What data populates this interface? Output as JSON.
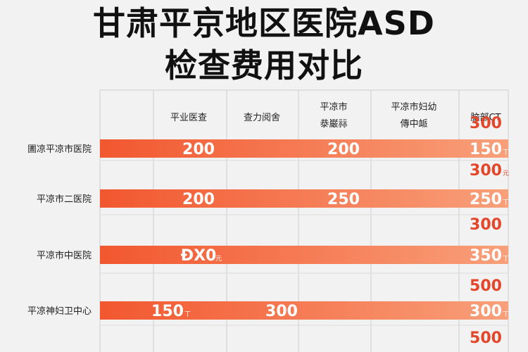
{
  "title_line1": "甘肃平京地区医院ASD",
  "title_line2": "检查费用对比",
  "chart_data": {
    "type": "bar",
    "title": "甘肃平京地区医院ASD 检查费用对比",
    "column_headers": [
      "平业医查",
      "查力阅舍",
      "平凉市\n㳟巌祘",
      "平凉市妇幼\n傳中衇",
      "脑部CT"
    ],
    "categories": [
      "圕凉平凉市医院",
      "平凉市二医院",
      "平凉市中医院",
      "平凉神妇卫中心"
    ],
    "bar_labels": [
      [
        {
          "text": "200",
          "col": 1
        },
        {
          "text": "200",
          "col": 3
        },
        {
          "text": "150",
          "col": 5,
          "unit": "丅"
        }
      ],
      [
        {
          "text": "200",
          "col": 1
        },
        {
          "text": "250",
          "col": 3
        },
        {
          "text": "250",
          "col": 5,
          "unit": "丅"
        }
      ],
      [
        {
          "text": "ÐX0",
          "col": 1,
          "unit": "元"
        },
        {
          "text": "350",
          "col": 5,
          "unit": "丅"
        }
      ],
      [
        {
          "text": "150",
          "col": 0,
          "unit": "丅"
        },
        {
          "text": "300",
          "col": 2
        },
        {
          "text": "300",
          "col": 5,
          "unit": "丅"
        }
      ]
    ],
    "side_values": [
      {
        "text": "300",
        "row": -1
      },
      {
        "text": "300",
        "row": 0,
        "unit": "元"
      },
      {
        "text": "300",
        "row": 1
      },
      {
        "text": "500",
        "row": 2
      },
      {
        "text": "500",
        "row": 3
      }
    ],
    "bar_fill": [
      1.0,
      1.0,
      1.0,
      1.0
    ],
    "colors": {
      "bar_start": "#f2572f",
      "bar_end": "#f8a07a",
      "value_side": "#e4462a",
      "grid": "#cfcfcf"
    },
    "grid": true
  }
}
